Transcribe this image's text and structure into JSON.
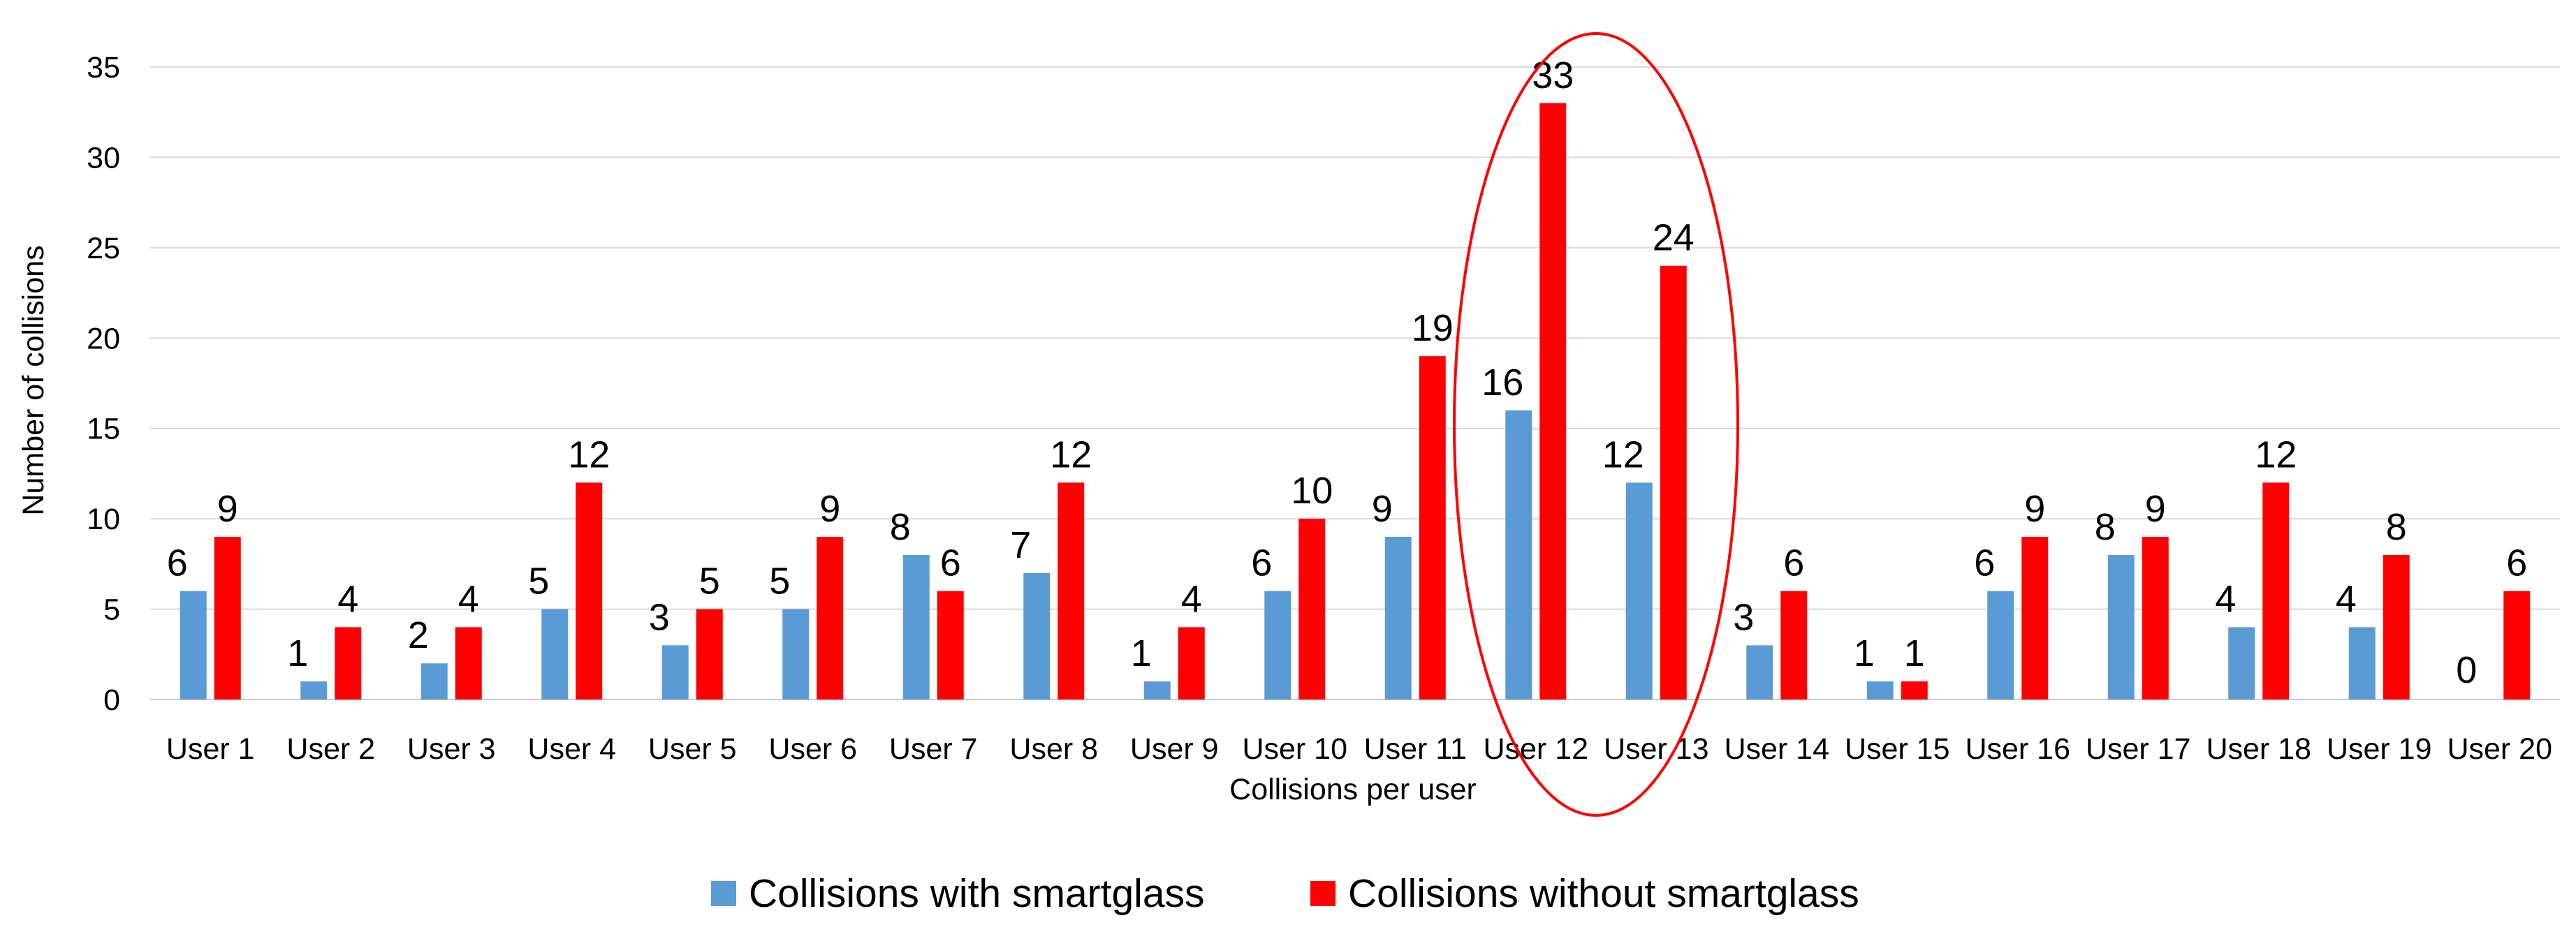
{
  "chart_data": {
    "type": "bar",
    "title": "",
    "xlabel": "Collisions per user",
    "ylabel": "Number of collisions",
    "ylim": [
      0,
      35
    ],
    "yticks": [
      0,
      5,
      10,
      15,
      20,
      25,
      30,
      35
    ],
    "grid": true,
    "legend_position": "bottom",
    "categories": [
      "User 1",
      "User 2",
      "User 3",
      "User 4",
      "User 5",
      "User 6",
      "User 7",
      "User 8",
      "User 9",
      "User 10",
      "User 11",
      "User 12",
      "User 13",
      "User 14",
      "User 15",
      "User 16",
      "User 17",
      "User 18",
      "User 19",
      "User 20"
    ],
    "series": [
      {
        "name": "Collisions with smartglass",
        "color": "#5B9BD5",
        "values": [
          6,
          1,
          2,
          5,
          3,
          5,
          8,
          7,
          1,
          6,
          9,
          16,
          12,
          3,
          1,
          6,
          8,
          4,
          4,
          0
        ]
      },
      {
        "name": "Collisions without smartglass",
        "color": "#FF0000",
        "values": [
          9,
          4,
          4,
          12,
          5,
          9,
          6,
          12,
          4,
          10,
          19,
          33,
          24,
          6,
          1,
          9,
          9,
          12,
          8,
          6
        ]
      }
    ],
    "annotations": [
      {
        "type": "ellipse",
        "color": "#FF0000",
        "around_categories": [
          "User 12",
          "User 13"
        ]
      }
    ]
  }
}
